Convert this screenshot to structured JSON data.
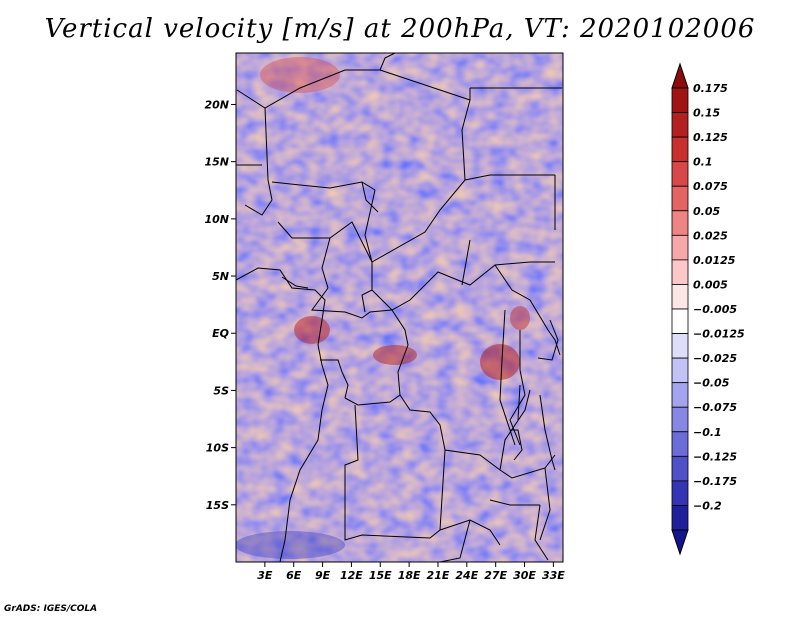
{
  "title": "Vertical velocity [m/s] at 200hPa, VT: 2020102006",
  "credit": "GrADS: IGES/COLA",
  "map": {
    "lon_range": [
      0,
      34
    ],
    "lat_range": [
      -20,
      24.5
    ],
    "lat_ticks": [
      {
        "value": 20,
        "label": "20N"
      },
      {
        "value": 15,
        "label": "15N"
      },
      {
        "value": 10,
        "label": "10N"
      },
      {
        "value": 5,
        "label": "5N"
      },
      {
        "value": 0,
        "label": "EQ"
      },
      {
        "value": -5,
        "label": "5S"
      },
      {
        "value": -10,
        "label": "10S"
      },
      {
        "value": -15,
        "label": "15S"
      }
    ],
    "lon_ticks": [
      {
        "value": 3,
        "label": "3E"
      },
      {
        "value": 6,
        "label": "6E"
      },
      {
        "value": 9,
        "label": "9E"
      },
      {
        "value": 12,
        "label": "12E"
      },
      {
        "value": 15,
        "label": "15E"
      },
      {
        "value": 18,
        "label": "18E"
      },
      {
        "value": 21,
        "label": "21E"
      },
      {
        "value": 24,
        "label": "24E"
      },
      {
        "value": 27,
        "label": "27E"
      },
      {
        "value": 30,
        "label": "30E"
      },
      {
        "value": 33,
        "label": "33E"
      }
    ]
  },
  "colorbar": {
    "levels": [
      {
        "label": "0.175",
        "color": "#a01414"
      },
      {
        "label": "0.15",
        "color": "#b42020"
      },
      {
        "label": "0.125",
        "color": "#c83030"
      },
      {
        "label": "0.1",
        "color": "#d84848"
      },
      {
        "label": "0.075",
        "color": "#e46464"
      },
      {
        "label": "0.05",
        "color": "#ee8484"
      },
      {
        "label": "0.025",
        "color": "#f6a8a8"
      },
      {
        "label": "0.0125",
        "color": "#fac8c8"
      },
      {
        "label": "0.005",
        "color": "#fde6e6"
      },
      {
        "label": "-0.005",
        "color": "#ffffff"
      },
      {
        "label": "-0.0125",
        "color": "#dedefa"
      },
      {
        "label": "-0.025",
        "color": "#c2c2f4"
      },
      {
        "label": "-0.05",
        "color": "#a4a4ee"
      },
      {
        "label": "-0.075",
        "color": "#8888e4"
      },
      {
        "label": "-0.1",
        "color": "#6c6cd8"
      },
      {
        "label": "-0.125",
        "color": "#5050c8"
      },
      {
        "label": "-0.175",
        "color": "#3434b4"
      },
      {
        "label": "-0.2",
        "color": "#20209c"
      }
    ],
    "top_arrow_color": "#8c0c0c",
    "bottom_arrow_color": "#14148c"
  }
}
